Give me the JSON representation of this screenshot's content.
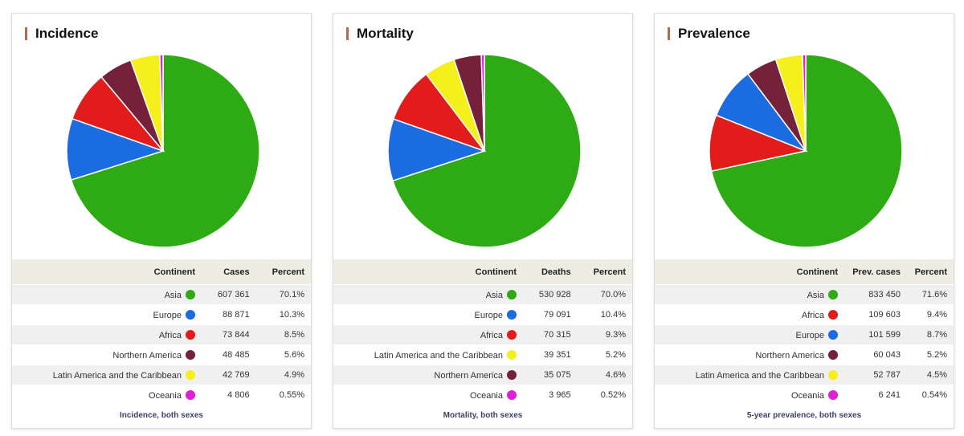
{
  "chart_data": [
    {
      "type": "pie",
      "title": "Incidence",
      "value_header": "Cases",
      "footer": "Incidence, both sexes",
      "rows": [
        {
          "continent": "Asia",
          "value": "607 361",
          "percent": "70.1%",
          "color": "#2eaa14"
        },
        {
          "continent": "Europe",
          "value": "88 871",
          "percent": "10.3%",
          "color": "#1a6ce0"
        },
        {
          "continent": "Africa",
          "value": "73 844",
          "percent": "8.5%",
          "color": "#e21b1b"
        },
        {
          "continent": "Northern America",
          "value": "48 485",
          "percent": "5.6%",
          "color": "#75213c"
        },
        {
          "continent": "Latin America and the Caribbean",
          "value": "42 769",
          "percent": "4.9%",
          "color": "#f5ef1c"
        },
        {
          "continent": "Oceania",
          "value": "4 806",
          "percent": "0.55%",
          "color": "#e01ed6"
        }
      ]
    },
    {
      "type": "pie",
      "title": "Mortality",
      "value_header": "Deaths",
      "footer": "Mortality, both sexes",
      "rows": [
        {
          "continent": "Asia",
          "value": "530 928",
          "percent": "70.0%",
          "color": "#2eaa14"
        },
        {
          "continent": "Europe",
          "value": "79 091",
          "percent": "10.4%",
          "color": "#1a6ce0"
        },
        {
          "continent": "Africa",
          "value": "70 315",
          "percent": "9.3%",
          "color": "#e21b1b"
        },
        {
          "continent": "Latin America and the Caribbean",
          "value": "39 351",
          "percent": "5.2%",
          "color": "#f5ef1c"
        },
        {
          "continent": "Northern America",
          "value": "35 075",
          "percent": "4.6%",
          "color": "#75213c"
        },
        {
          "continent": "Oceania",
          "value": "3 965",
          "percent": "0.52%",
          "color": "#e01ed6"
        }
      ]
    },
    {
      "type": "pie",
      "title": "Prevalence",
      "value_header": "Prev. cases",
      "footer": "5-year prevalence, both sexes",
      "rows": [
        {
          "continent": "Asia",
          "value": "833 450",
          "percent": "71.6%",
          "color": "#2eaa14"
        },
        {
          "continent": "Africa",
          "value": "109 603",
          "percent": "9.4%",
          "color": "#e21b1b"
        },
        {
          "continent": "Europe",
          "value": "101 599",
          "percent": "8.7%",
          "color": "#1a6ce0"
        },
        {
          "continent": "Northern America",
          "value": "60 043",
          "percent": "5.2%",
          "color": "#75213c"
        },
        {
          "continent": "Latin America and the Caribbean",
          "value": "52 787",
          "percent": "4.5%",
          "color": "#f5ef1c"
        },
        {
          "continent": "Oceania",
          "value": "6 241",
          "percent": "0.54%",
          "color": "#e01ed6"
        }
      ]
    }
  ],
  "table_headers": {
    "continent": "Continent",
    "percent": "Percent"
  }
}
